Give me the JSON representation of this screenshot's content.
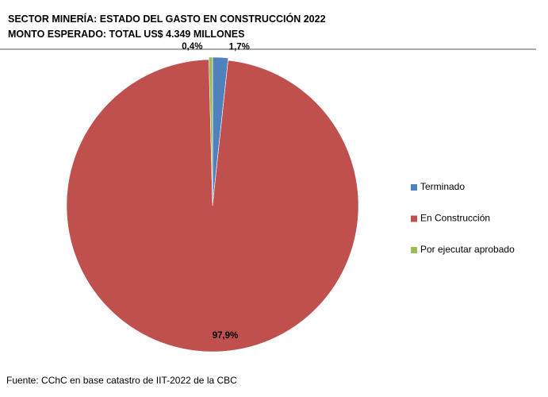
{
  "chart_data": {
    "type": "pie",
    "title": "SECTOR MINERÍA: ESTADO DEL GASTO EN CONSTRUCCIÓN 2022",
    "subtitle": "MONTO ESPERADO: TOTAL US$ 4.349 MILLONES",
    "categories": [
      "Terminado",
      "En Construcción",
      "Por ejecutar aprobado"
    ],
    "values": [
      1.7,
      97.9,
      0.4
    ],
    "value_labels": [
      "1,7%",
      "97,9%",
      "0,4%"
    ],
    "colors": [
      "#4f81bd",
      "#c0504d",
      "#9bbb59"
    ],
    "legend": "right",
    "source": "Fuente: CChC en base catastro de IIT-2022 de la CBC"
  }
}
